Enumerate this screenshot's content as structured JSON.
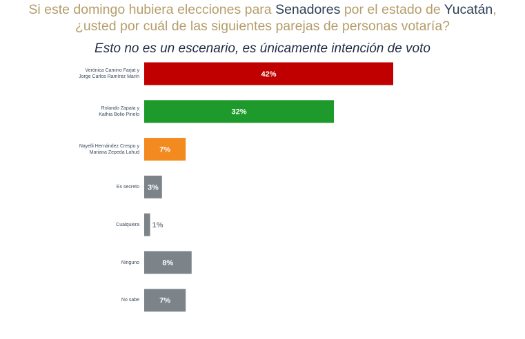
{
  "chart_data": {
    "type": "bar",
    "title": [
      "Si este domingo hubiera elecciones para ",
      "Senadores",
      " por el estado de ",
      "Yucatán",
      ",",
      "¿usted por cuál de las siguientes parejas de personas votaría?"
    ],
    "subtitle": "Esto no es un escenario, es únicamente intención de voto",
    "categories": [
      "Verónica Camino Farjat y\nJorge Carlos Ramírez Marín",
      "Rolando Zapata y\nKathia Bolio Pinelo",
      "Nayelli Hernández Crespo y\nMariana Zepeda Lahud",
      "Es secreto",
      "Cualquiera",
      "Ninguno",
      "No sabe"
    ],
    "values": [
      42,
      32,
      7,
      3,
      1,
      8,
      7
    ],
    "value_labels": [
      "42%",
      "32%",
      "7%",
      "3%",
      "1%",
      "8%",
      "7%"
    ],
    "colors": [
      "#c00000",
      "#1e9a2c",
      "#f28a1f",
      "#7d8489",
      "#7d8489",
      "#7d8489",
      "#7d8489"
    ]
  }
}
